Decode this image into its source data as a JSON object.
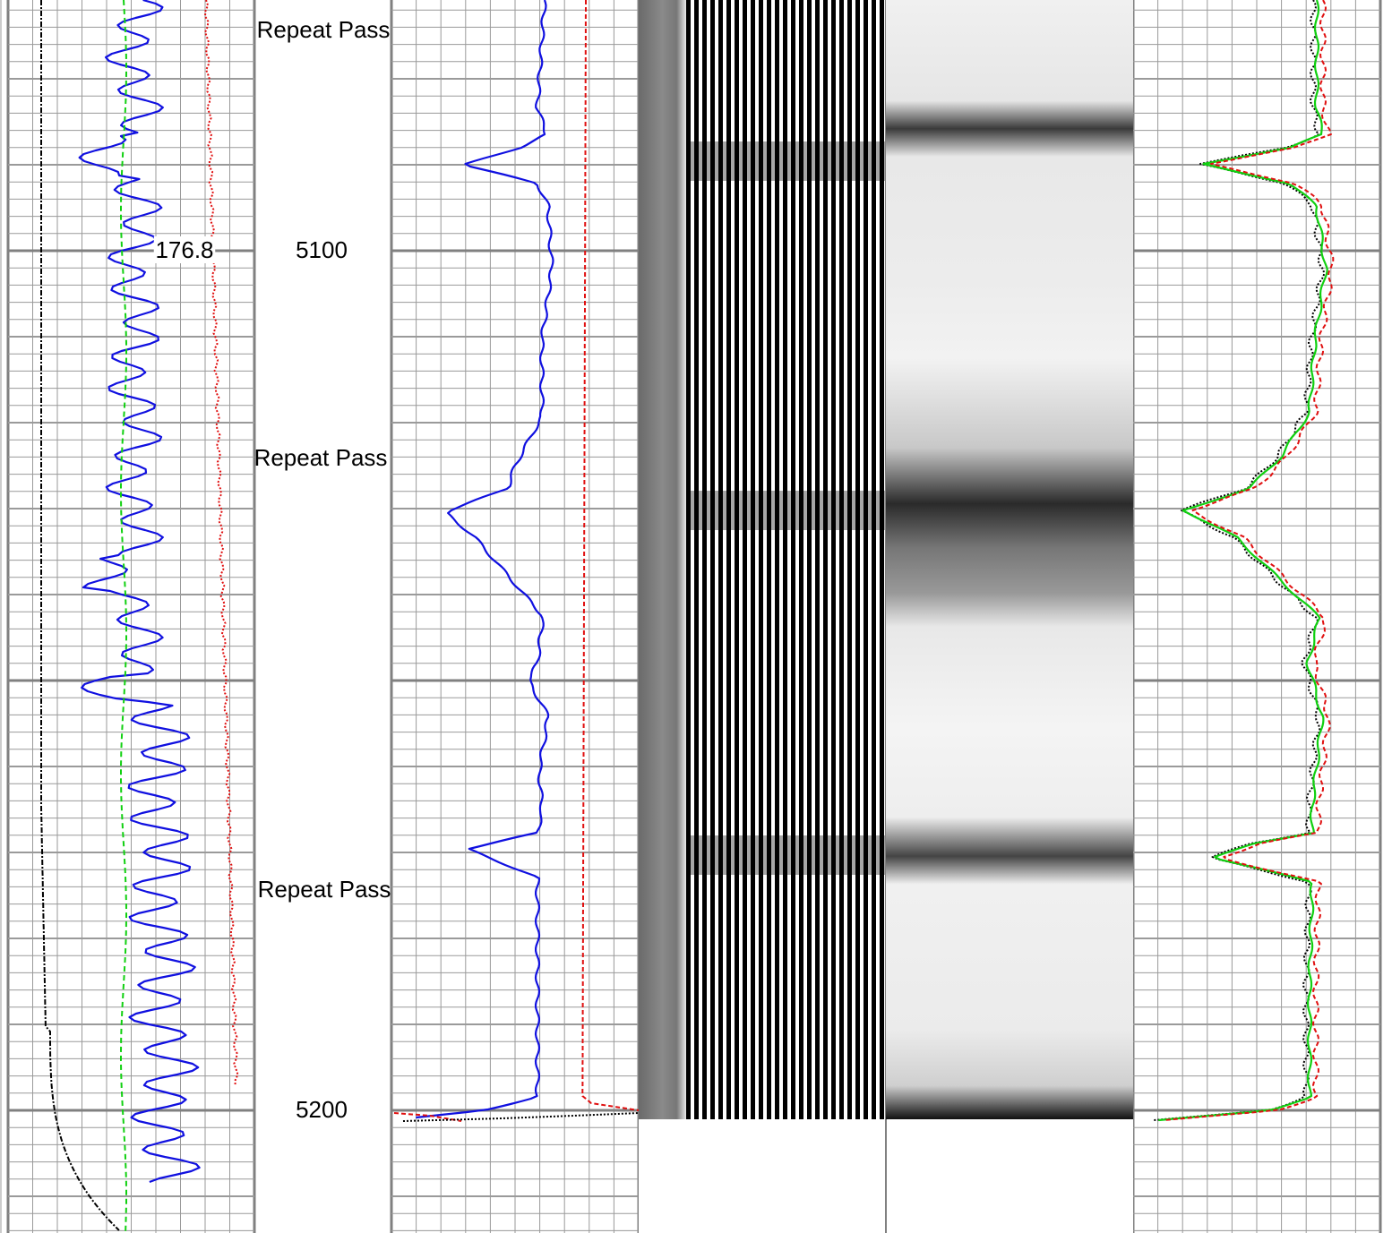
{
  "chart_data": {
    "type": "line",
    "title": "",
    "depth_axis": {
      "labels": [
        5100,
        5200
      ],
      "range": [
        5074.5,
        5218
      ]
    },
    "annotations": {
      "repeat_pass": [
        "Repeat Pass",
        "Repeat Pass",
        "Repeat Pass"
      ],
      "value_callout": "176.8"
    },
    "grid": true,
    "tracks": [
      {
        "name": "track-1",
        "series": [
          "black dash-dot",
          "green dashed",
          "blue solid",
          "red dotted"
        ]
      },
      {
        "name": "depth-track"
      },
      {
        "name": "track-3",
        "series": [
          "blue solid",
          "red dashed",
          "black dotted"
        ]
      },
      {
        "name": "track-4",
        "series": [
          "waveform variable density image"
        ]
      },
      {
        "name": "track-5",
        "series": [
          "grayscale image"
        ]
      },
      {
        "name": "track-6",
        "series": [
          "black dotted",
          "green solid",
          "red dashed"
        ]
      }
    ],
    "colors": {
      "blue": "#1010e0",
      "red": "#e01010",
      "green": "#10d010",
      "black": "#000000",
      "grid_minor": "#9a9a9a",
      "grid_major": "#808080"
    }
  }
}
